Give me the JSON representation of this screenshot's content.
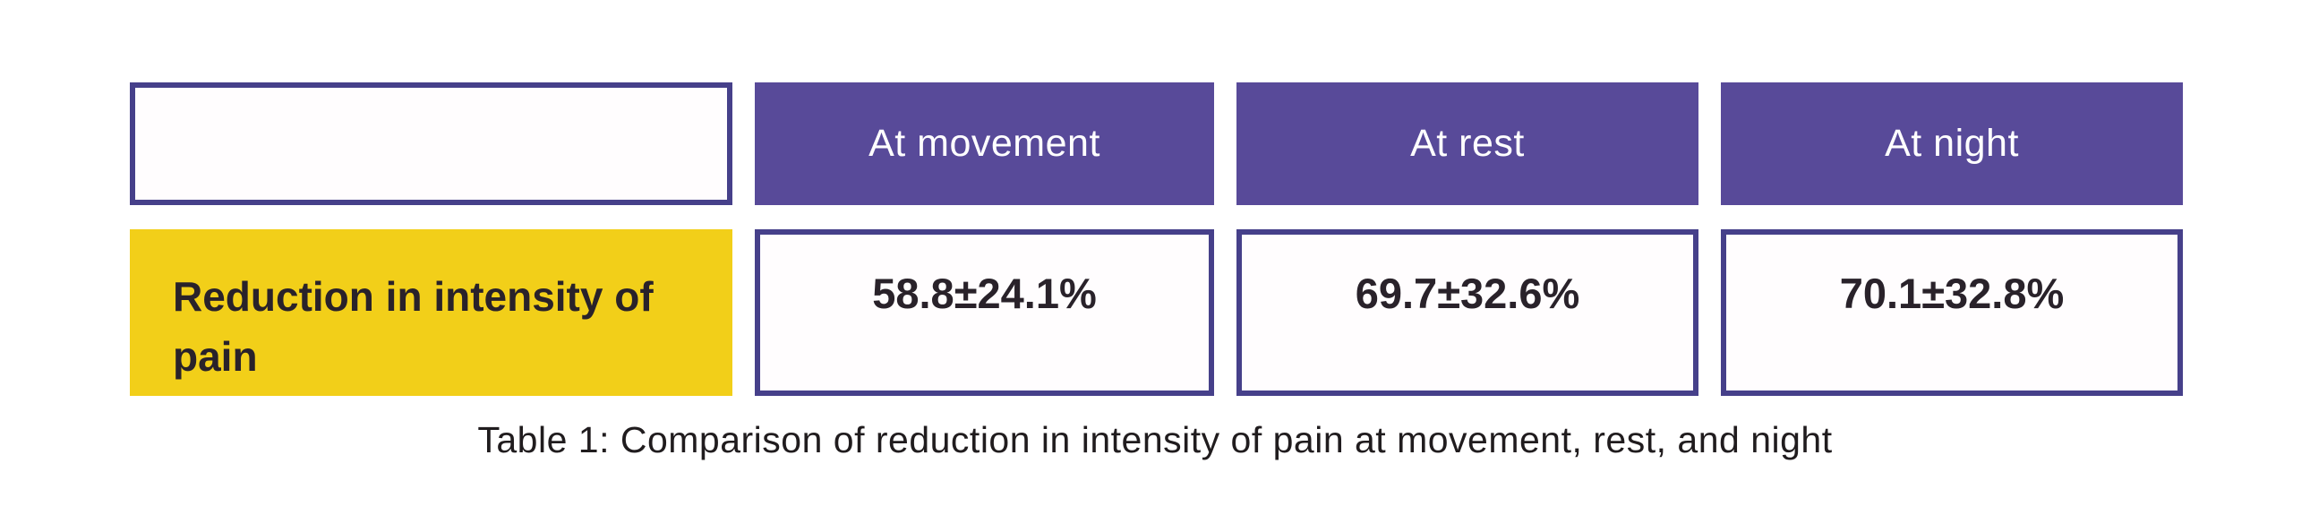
{
  "colors": {
    "header_fill": "#584a99",
    "border_col": "#46408a",
    "label_bg": "#f2cf19",
    "header_text": "#ffffff",
    "text_dark": "#29222a",
    "caption_text": "#201c1e",
    "page_bg": "#ffffff"
  },
  "table": {
    "columns": [
      "",
      "At movement",
      "At rest",
      "At night"
    ],
    "row": {
      "label": "Reduction in intensity of pain",
      "values": [
        "58.8±24.1%",
        "69.7±32.6%",
        "70.1±32.8%"
      ]
    },
    "caption": "Table 1: Comparison of reduction in intensity of pain at movement, rest, and night"
  },
  "chart_data": {
    "type": "table",
    "title": "Table 1: Comparison of reduction in intensity of pain at movement, rest, and night",
    "categories": [
      "At movement",
      "At rest",
      "At night"
    ],
    "series": [
      {
        "name": "Reduction in intensity of pain",
        "values": [
          "58.8±24.1%",
          "69.7±32.6%",
          "70.1±32.8%"
        ]
      }
    ]
  }
}
